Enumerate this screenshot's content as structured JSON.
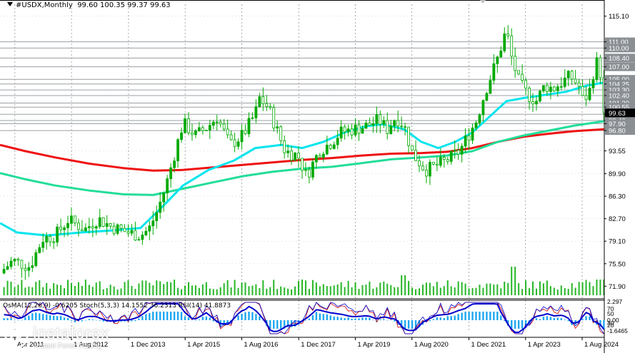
{
  "header": {
    "symbol": "#USDX,Monthly",
    "ohlc": "99.60 100.35 99.37 99.63"
  },
  "indicator_header": "OsMA(12,26,9) -0.6205  Stoch(5,3,3) 14.1552 36.2313  RSI(14) 41.8873",
  "brand": {
    "name": "instaforex",
    "tagline": "Instant Forex Trading"
  },
  "colors": {
    "candle": "#00aa00",
    "volume": "#00aa00",
    "ema_fast": "#00e5ee",
    "ema_mid": "#22dd99",
    "ema_slow": "#ee1111",
    "level_line": "#9aa0a6",
    "grid": "#000000",
    "osma": "#1ea7f0",
    "stoch_main": "#0000cc",
    "stoch_signal": "#cc0000",
    "rsi": "#000000"
  },
  "chart_data": {
    "type": "candlestick",
    "timeframe": "Monthly",
    "ylim": [
      70.0,
      117.0
    ],
    "grid": true,
    "price_axis_labels": [
      "115.10",
      "111.00",
      "110.00",
      "108.40",
      "107.00",
      "105.00",
      "104.25",
      "103.30",
      "102.40",
      "101.20",
      "100.55",
      "99.40",
      "98.40",
      "97.90",
      "96.80",
      "93.55",
      "89.90",
      "86.30",
      "82.70",
      "79.10",
      "75.50",
      "71.90"
    ],
    "horizontal_levels": [
      111.0,
      110.0,
      108.4,
      107.0,
      105.0,
      104.25,
      103.3,
      102.4,
      101.2,
      100.55,
      99.4,
      98.4,
      97.9,
      96.8
    ],
    "current_price": 99.63,
    "time_axis_labels": [
      {
        "label": "Apr 2011",
        "x": 2011.25
      },
      {
        "label": "1 Aug 2012",
        "x": 2012.58
      },
      {
        "label": "1 Dec 2013",
        "x": 2013.92
      },
      {
        "label": "1 Apr 2015",
        "x": 2015.25
      },
      {
        "label": "1 Aug 2016",
        "x": 2016.58
      },
      {
        "label": "1 Dec 2017",
        "x": 2017.92
      },
      {
        "label": "1 Apr 2019",
        "x": 2019.25
      },
      {
        "label": "1 Aug 2020",
        "x": 2020.58
      },
      {
        "label": "1 Dec 2021",
        "x": 2021.92
      },
      {
        "label": "1 Apr 2023",
        "x": 2023.25
      },
      {
        "label": "1 Aug 2024",
        "x": 2024.58
      }
    ],
    "xlim": [
      2010.9,
      2025.1
    ],
    "price_path": [
      [
        2010.9,
        74.0
      ],
      [
        2011.2,
        76.0
      ],
      [
        2011.6,
        75.0
      ],
      [
        2011.9,
        79.5
      ],
      [
        2012.2,
        80.0
      ],
      [
        2012.5,
        82.5
      ],
      [
        2012.9,
        81.0
      ],
      [
        2013.2,
        82.7
      ],
      [
        2013.5,
        81.5
      ],
      [
        2013.9,
        80.5
      ],
      [
        2014.2,
        80.0
      ],
      [
        2014.4,
        81.0
      ],
      [
        2014.6,
        84.0
      ],
      [
        2014.8,
        88.0
      ],
      [
        2015.0,
        93.0
      ],
      [
        2015.2,
        98.0
      ],
      [
        2015.5,
        96.0
      ],
      [
        2015.8,
        97.5
      ],
      [
        2016.0,
        99.0
      ],
      [
        2016.3,
        94.5
      ],
      [
        2016.6,
        96.0
      ],
      [
        2016.9,
        99.5
      ],
      [
        2017.0,
        102.0
      ],
      [
        2017.2,
        100.5
      ],
      [
        2017.4,
        97.0
      ],
      [
        2017.6,
        93.5
      ],
      [
        2017.9,
        92.8
      ],
      [
        2018.1,
        89.5
      ],
      [
        2018.4,
        93.5
      ],
      [
        2018.7,
        95.0
      ],
      [
        2018.9,
        96.5
      ],
      [
        2019.2,
        97.0
      ],
      [
        2019.5,
        97.5
      ],
      [
        2019.8,
        98.5
      ],
      [
        2020.0,
        97.0
      ],
      [
        2020.2,
        99.0
      ],
      [
        2020.4,
        97.5
      ],
      [
        2020.6,
        93.0
      ],
      [
        2020.9,
        90.5
      ],
      [
        2021.1,
        91.0
      ],
      [
        2021.4,
        92.0
      ],
      [
        2021.7,
        93.5
      ],
      [
        2021.9,
        96.0
      ],
      [
        2022.1,
        98.5
      ],
      [
        2022.3,
        103.0
      ],
      [
        2022.6,
        108.5
      ],
      [
        2022.8,
        113.0
      ],
      [
        2022.9,
        109.0
      ],
      [
        2023.1,
        104.5
      ],
      [
        2023.3,
        102.5
      ],
      [
        2023.5,
        101.5
      ],
      [
        2023.7,
        104.0
      ],
      [
        2023.9,
        103.5
      ],
      [
        2024.1,
        104.5
      ],
      [
        2024.3,
        105.5
      ],
      [
        2024.5,
        104.0
      ],
      [
        2024.6,
        101.5
      ],
      [
        2024.75,
        103.0
      ],
      [
        2024.9,
        108.0
      ],
      [
        2025.0,
        106.5
      ],
      [
        2025.1,
        99.63
      ]
    ],
    "ema_fast_path": [
      [
        2010.9,
        82.0
      ],
      [
        2011.3,
        80.5
      ],
      [
        2012.0,
        80.0
      ],
      [
        2012.8,
        80.5
      ],
      [
        2013.5,
        80.8
      ],
      [
        2014.2,
        81.2
      ],
      [
        2014.7,
        84.5
      ],
      [
        2015.2,
        88.0
      ],
      [
        2015.8,
        90.5
      ],
      [
        2016.4,
        92.0
      ],
      [
        2016.9,
        94.0
      ],
      [
        2017.5,
        94.5
      ],
      [
        2018.0,
        94.0
      ],
      [
        2018.5,
        95.0
      ],
      [
        2019.0,
        96.5
      ],
      [
        2019.5,
        97.5
      ],
      [
        2019.9,
        97.8
      ],
      [
        2020.4,
        97.0
      ],
      [
        2020.8,
        95.0
      ],
      [
        2021.2,
        94.0
      ],
      [
        2021.6,
        95.0
      ],
      [
        2022.0,
        96.5
      ],
      [
        2022.4,
        99.0
      ],
      [
        2022.8,
        101.5
      ],
      [
        2023.2,
        102.0
      ],
      [
        2023.7,
        102.5
      ],
      [
        2024.2,
        103.0
      ],
      [
        2024.7,
        104.0
      ],
      [
        2025.1,
        104.5
      ]
    ],
    "ema_mid_path": [
      [
        2010.9,
        90.0
      ],
      [
        2011.5,
        89.0
      ],
      [
        2012.2,
        88.0
      ],
      [
        2013.0,
        87.2
      ],
      [
        2013.8,
        86.6
      ],
      [
        2014.5,
        86.5
      ],
      [
        2015.2,
        87.5
      ],
      [
        2015.9,
        88.5
      ],
      [
        2016.6,
        89.5
      ],
      [
        2017.3,
        90.2
      ],
      [
        2018.0,
        90.7
      ],
      [
        2018.7,
        91.0
      ],
      [
        2019.4,
        91.6
      ],
      [
        2020.1,
        92.2
      ],
      [
        2020.8,
        92.5
      ],
      [
        2021.4,
        92.8
      ],
      [
        2022.0,
        93.5
      ],
      [
        2022.6,
        95.0
      ],
      [
        2023.2,
        96.0
      ],
      [
        2023.8,
        96.8
      ],
      [
        2024.4,
        97.6
      ],
      [
        2025.1,
        98.3
      ]
    ],
    "ema_slow_path": [
      [
        2010.9,
        94.5
      ],
      [
        2011.5,
        93.5
      ],
      [
        2012.2,
        92.5
      ],
      [
        2013.0,
        91.5
      ],
      [
        2013.8,
        90.8
      ],
      [
        2014.5,
        90.4
      ],
      [
        2015.2,
        90.5
      ],
      [
        2015.9,
        90.9
      ],
      [
        2016.6,
        91.3
      ],
      [
        2017.3,
        91.7
      ],
      [
        2018.0,
        92.1
      ],
      [
        2018.7,
        92.4
      ],
      [
        2019.4,
        92.8
      ],
      [
        2020.1,
        93.1
      ],
      [
        2020.8,
        93.2
      ],
      [
        2021.4,
        93.4
      ],
      [
        2022.0,
        94.0
      ],
      [
        2022.6,
        95.0
      ],
      [
        2023.2,
        95.8
      ],
      [
        2023.8,
        96.3
      ],
      [
        2024.4,
        96.7
      ],
      [
        2025.1,
        97.0
      ]
    ]
  }
}
